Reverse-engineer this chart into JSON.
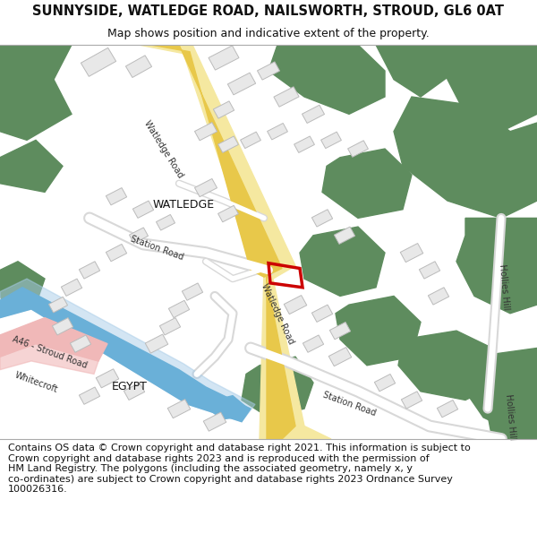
{
  "title": "SUNNYSIDE, WATLEDGE ROAD, NAILSWORTH, STROUD, GL6 0AT",
  "subtitle": "Map shows position and indicative extent of the property.",
  "footer": "Contains OS data © Crown copyright and database right 2021. This information is subject to\nCrown copyright and database rights 2023 and is reproduced with the permission of\nHM Land Registry. The polygons (including the associated geometry, namely x, y\nco-ordinates) are subject to Crown copyright and database rights 2023 Ordnance Survey\n100026316.",
  "title_fontsize": 10.5,
  "subtitle_fontsize": 9,
  "footer_fontsize": 8,
  "background_color": "#ffffff",
  "map_bg": "#f7f7f2",
  "green_color": "#5e8c5e",
  "road_yellow": "#e8c84a",
  "road_yellow_light": "#f5e8a0",
  "blue_water": "#6ab0d8",
  "blue_water_light": "#a8cce8",
  "pink_road": "#f0b8b8",
  "building_outline": "#bbbbbb",
  "building_fill": "#e8e8e8",
  "red_outline": "#cc0000",
  "text_dark": "#111111",
  "label_color": "#333333",
  "map_border": "#aaaaaa"
}
